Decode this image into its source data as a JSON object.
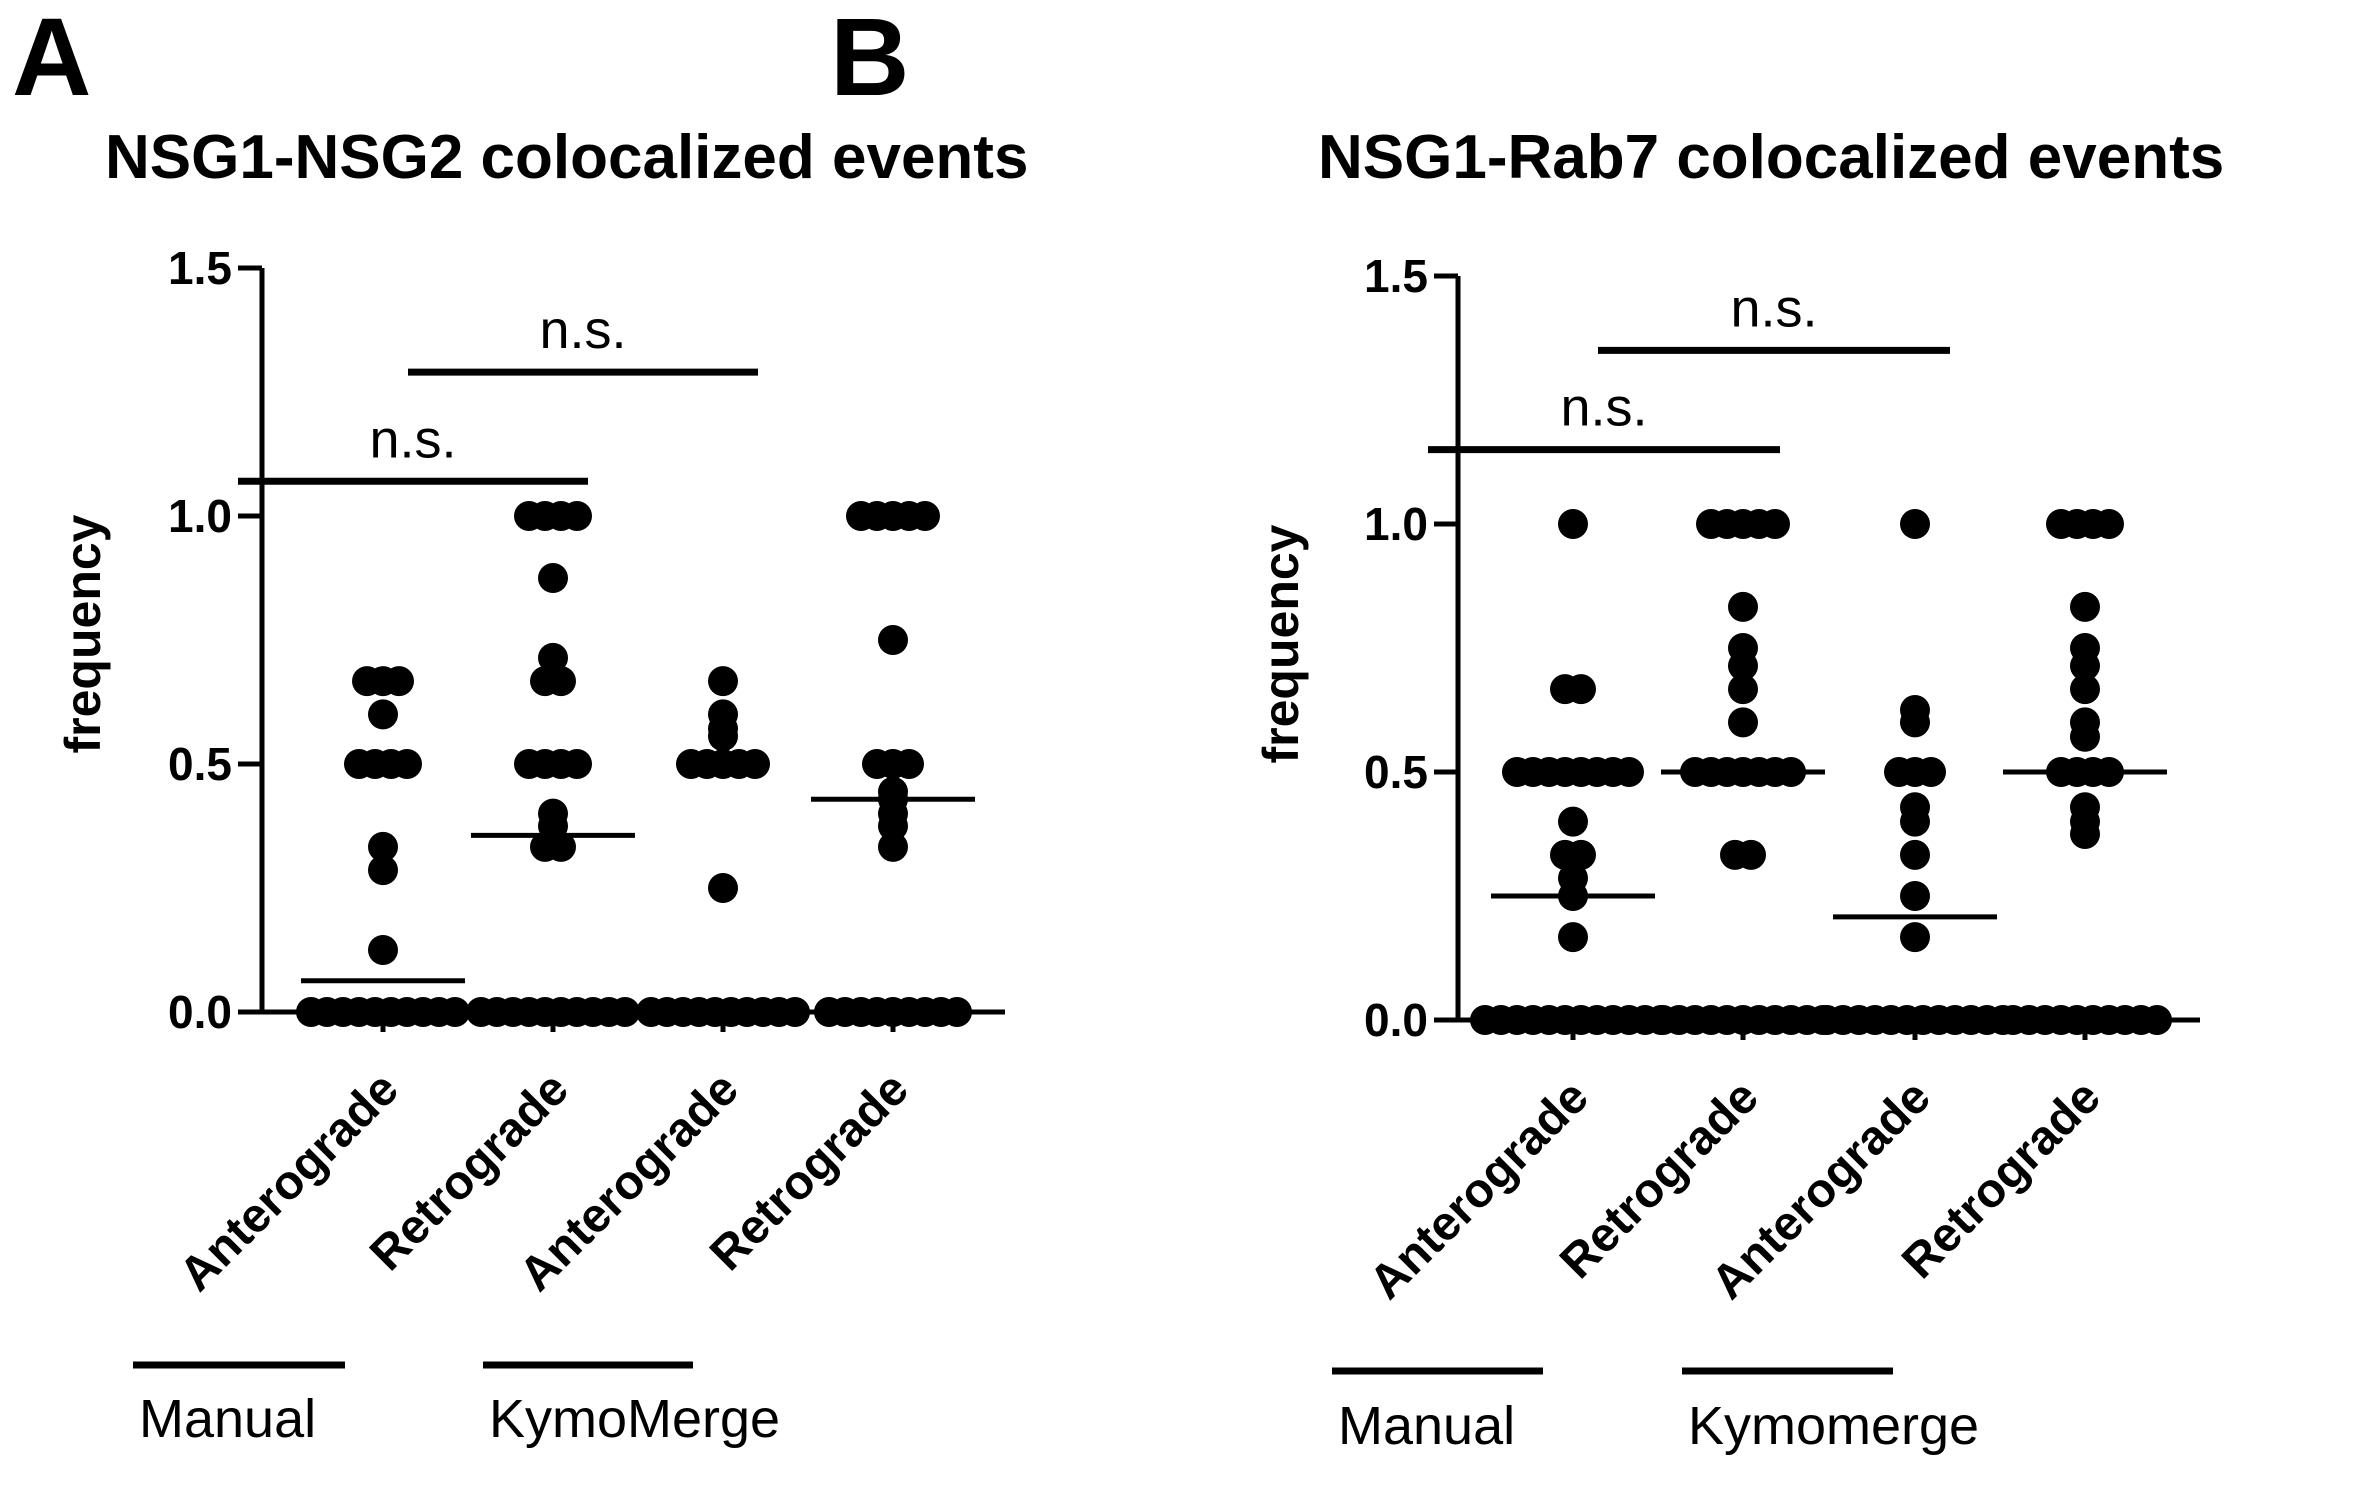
{
  "chart_data": [
    {
      "type": "scatter",
      "panel": "A",
      "title": "NSG1-NSG2 colocalized events",
      "ylabel": "frequency",
      "ylim": [
        0,
        1.5
      ],
      "yticks": [
        "0.0",
        "0.5",
        "1.0",
        "1.5"
      ],
      "categories": [
        "Anterograde",
        "Retrograde",
        "Anterograde",
        "Retrograde"
      ],
      "groups": [
        {
          "label": "Manual",
          "categories": [
            0,
            1
          ]
        },
        {
          "label": "KymoMerge",
          "categories": [
            2,
            3
          ]
        }
      ],
      "series": [
        {
          "values": [
            0,
            0,
            0,
            0,
            0,
            0,
            0,
            0,
            0,
            0,
            0.125,
            0.286,
            0.333,
            0.5,
            0.5,
            0.5,
            0.5,
            0.6,
            0.667,
            0.667,
            0.667
          ],
          "mean": 0.063
        },
        {
          "values": [
            0,
            0,
            0,
            0,
            0,
            0,
            0,
            0,
            0,
            0,
            0.333,
            0.333,
            0.375,
            0.4,
            0.5,
            0.5,
            0.5,
            0.5,
            0.667,
            0.667,
            0.714,
            0.875,
            1,
            1,
            1,
            1
          ],
          "mean": 0.356
        },
        {
          "values": [
            0,
            0,
            0,
            0,
            0,
            0,
            0,
            0,
            0,
            0,
            0.25,
            0.5,
            0.5,
            0.5,
            0.5,
            0.5,
            0.556,
            0.571,
            0.6,
            0.667
          ],
          "mean": 0.0
        },
        {
          "values": [
            0,
            0,
            0,
            0,
            0,
            0,
            0,
            0,
            0,
            0.333,
            0.375,
            0.4,
            0.429,
            0.444,
            0.5,
            0.5,
            0.5,
            0.75,
            1,
            1,
            1,
            1,
            1
          ],
          "mean": 0.429
        }
      ],
      "comparisons": [
        {
          "from": 0,
          "to": 2,
          "label": "n.s.",
          "y": 1.07
        },
        {
          "from": 1,
          "to": 3,
          "label": "n.s.",
          "y": 1.29
        }
      ]
    },
    {
      "type": "scatter",
      "panel": "B",
      "title": "NSG1-Rab7 colocalized events",
      "ylabel": "frequency",
      "ylim": [
        0,
        1.5
      ],
      "yticks": [
        "0.0",
        "0.5",
        "1.0",
        "1.5"
      ],
      "categories": [
        "Anterograde",
        "Retrograde",
        "Anterograde",
        "Retrograde"
      ],
      "groups": [
        {
          "label": "Manual",
          "categories": [
            0,
            1
          ]
        },
        {
          "label": "Kymomerge",
          "categories": [
            2,
            3
          ]
        }
      ],
      "series": [
        {
          "values": [
            0,
            0,
            0,
            0,
            0,
            0,
            0,
            0,
            0,
            0,
            0,
            0,
            0.167,
            0.25,
            0.286,
            0.333,
            0.333,
            0.4,
            0.5,
            0.5,
            0.5,
            0.5,
            0.5,
            0.5,
            0.5,
            0.5,
            0.667,
            0.667,
            1
          ],
          "mean": 0.25
        },
        {
          "values": [
            0,
            0,
            0,
            0,
            0,
            0,
            0,
            0,
            0,
            0,
            0,
            0.333,
            0.333,
            0.5,
            0.5,
            0.5,
            0.5,
            0.5,
            0.5,
            0.5,
            0.6,
            0.667,
            0.714,
            0.75,
            0.833,
            1,
            1,
            1,
            1,
            1
          ],
          "mean": 0.5
        },
        {
          "values": [
            0,
            0,
            0,
            0,
            0,
            0,
            0,
            0,
            0,
            0,
            0,
            0,
            0.167,
            0.25,
            0.333,
            0.4,
            0.429,
            0.5,
            0.5,
            0.5,
            0.6,
            0.625,
            1
          ],
          "mean": 0.208
        },
        {
          "values": [
            0,
            0,
            0,
            0,
            0,
            0,
            0,
            0,
            0,
            0,
            0.375,
            0.4,
            0.429,
            0.5,
            0.5,
            0.5,
            0.5,
            0.571,
            0.6,
            0.667,
            0.714,
            0.75,
            0.833,
            1,
            1,
            1,
            1
          ],
          "mean": 0.5
        }
      ],
      "comparisons": [
        {
          "from": 0,
          "to": 2,
          "label": "n.s.",
          "y": 1.15
        },
        {
          "from": 1,
          "to": 3,
          "label": "n.s.",
          "y": 1.35
        }
      ]
    }
  ]
}
